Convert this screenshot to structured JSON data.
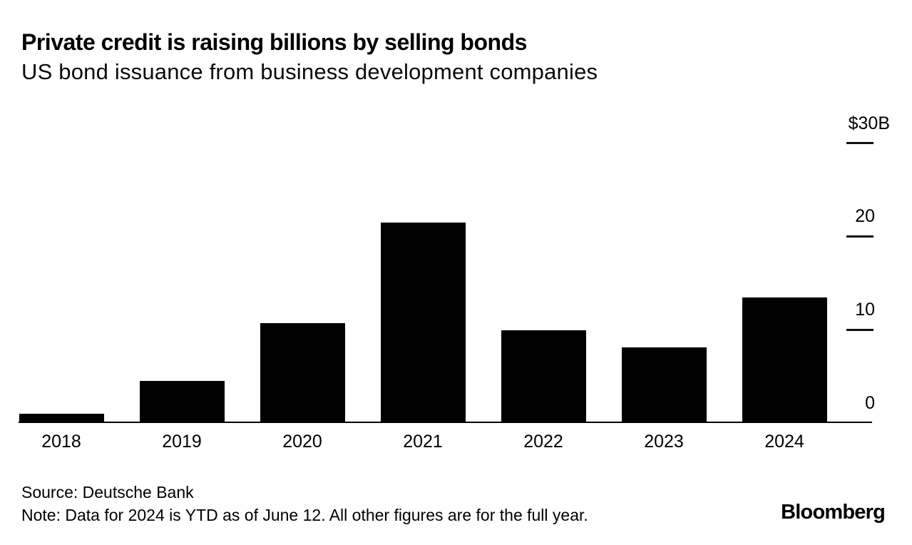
{
  "header": {
    "title": "Private credit is raising billions by selling bonds",
    "subtitle": "US bond issuance from business development companies"
  },
  "chart_data": {
    "type": "bar",
    "title": "Private credit is raising billions by selling bonds",
    "subtitle": "US bond issuance from business development companies",
    "categories": [
      "2018",
      "2019",
      "2020",
      "2021",
      "2022",
      "2023",
      "2024"
    ],
    "values": [
      0.9,
      4.4,
      10.6,
      21.4,
      9.9,
      8.0,
      13.4
    ],
    "unit": "$B",
    "xlabel": "",
    "ylabel": "",
    "ylim": [
      0,
      30
    ],
    "y_ticks": [
      {
        "label": "$30B",
        "value": 30,
        "tick": true,
        "dx": 21
      },
      {
        "label": "20",
        "value": 20,
        "tick": true,
        "dx": 0
      },
      {
        "label": "10",
        "value": 10,
        "tick": true,
        "dx": 0
      },
      {
        "label": "0",
        "value": 0,
        "tick": false,
        "dx": 0
      }
    ],
    "bar_color": "#000000",
    "background_color": "#ffffff",
    "grid": "off",
    "legend": "none",
    "y_axis_side": "right"
  },
  "footer": {
    "source": "Source: Deutsche Bank",
    "note": "Note: Data for 2024 is YTD as of June 12. All other figures are for the full year.",
    "logo": "Bloomberg"
  }
}
